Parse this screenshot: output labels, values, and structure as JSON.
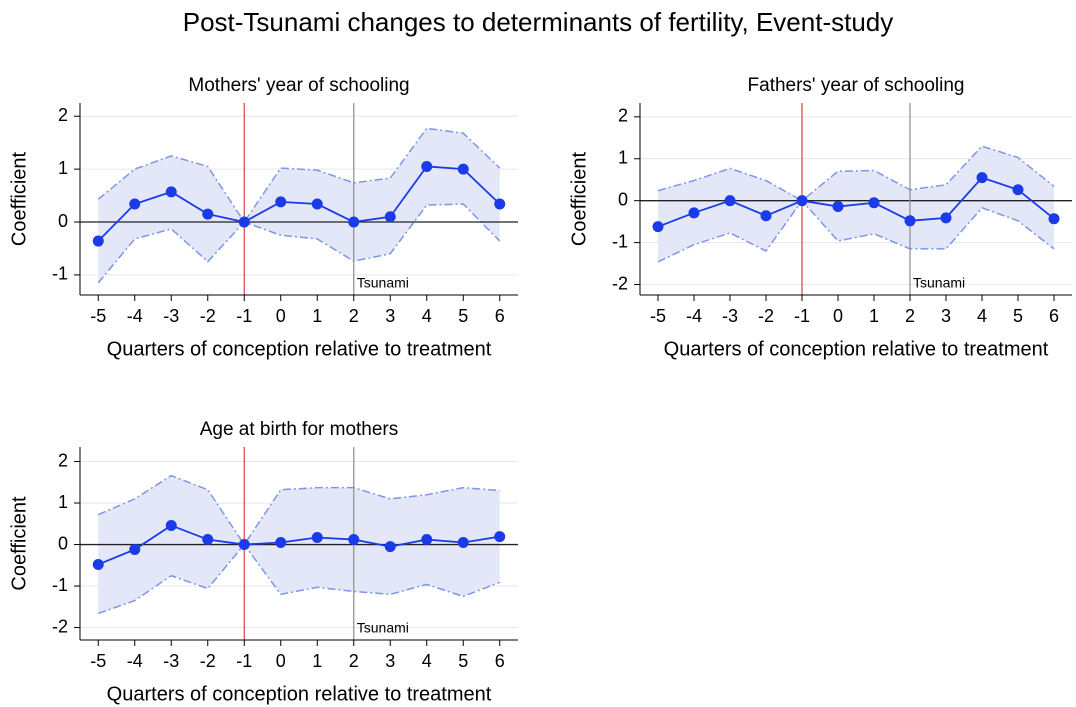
{
  "title": "Post-Tsunami changes to determinants of fertility, Event-study",
  "chart_data": [
    {
      "type": "line",
      "title": "Mothers' year of schooling",
      "x_label": "Quarters of conception relative to treatment",
      "y_label": "Coefficient",
      "x": [
        -5,
        -4,
        -3,
        -2,
        -1,
        0,
        1,
        2,
        3,
        4,
        5,
        6
      ],
      "values": [
        -0.36,
        0.34,
        0.57,
        0.15,
        0,
        0.38,
        0.34,
        0,
        0.1,
        1.05,
        1.0,
        0.34
      ],
      "ci_upper": [
        0.43,
        1.0,
        1.25,
        1.05,
        0,
        1.02,
        0.98,
        0.74,
        0.83,
        1.77,
        1.68,
        1.02
      ],
      "ci_lower": [
        -1.15,
        -0.32,
        -0.13,
        -0.75,
        0,
        -0.25,
        -0.32,
        -0.74,
        -0.6,
        0.32,
        0.34,
        -0.36
      ],
      "color": "#1a3be8",
      "ci_color": "#7f96e8",
      "ci_fill": "#e4e7f8",
      "xlim": [
        -5.5,
        6.5
      ],
      "xticks": [
        -5,
        -4,
        -3,
        -2,
        -1,
        0,
        1,
        2,
        3,
        4,
        5,
        6
      ],
      "ylim": [
        -1.38,
        2.25
      ],
      "yticks": [
        -1,
        0,
        1,
        2
      ],
      "grid": true,
      "refline_y": 0,
      "vlines": [
        {
          "x": -1,
          "color": "#e0403a"
        },
        {
          "x": 2,
          "color": "#8c8c8c"
        }
      ],
      "annotations": [
        {
          "text": "Tsunami",
          "x": 2
        }
      ]
    },
    {
      "type": "line",
      "title": "Fathers' year of schooling",
      "x_label": "Quarters of conception relative to treatment",
      "y_label": "Coefficient",
      "x": [
        -5,
        -4,
        -3,
        -2,
        -1,
        0,
        1,
        2,
        3,
        4,
        5,
        6
      ],
      "values": [
        -0.62,
        -0.29,
        0,
        -0.36,
        0,
        -0.14,
        -0.05,
        -0.48,
        -0.41,
        0.55,
        0.26,
        -0.43
      ],
      "ci_upper": [
        0.24,
        0.48,
        0.77,
        0.48,
        0,
        0.7,
        0.72,
        0.26,
        0.38,
        1.3,
        1.03,
        0.34
      ],
      "ci_lower": [
        -1.46,
        -1.05,
        -0.77,
        -1.2,
        0,
        -0.96,
        -0.79,
        -1.15,
        -1.15,
        -0.17,
        -0.48,
        -1.15
      ],
      "color": "#1a3be8",
      "ci_color": "#7f96e8",
      "ci_fill": "#e4e7f8",
      "xlim": [
        -5.5,
        6.5
      ],
      "xticks": [
        -5,
        -4,
        -3,
        -2,
        -1,
        0,
        1,
        2,
        3,
        4,
        5,
        6
      ],
      "ylim": [
        -2.25,
        2.33
      ],
      "yticks": [
        -2,
        -1,
        0,
        1,
        2
      ],
      "grid": true,
      "refline_y": 0,
      "vlines": [
        {
          "x": -1,
          "color": "#e0403a"
        },
        {
          "x": 2,
          "color": "#8c8c8c"
        }
      ],
      "annotations": [
        {
          "text": "Tsunami",
          "x": 2
        }
      ]
    },
    {
      "type": "line",
      "title": "Age at birth for mothers",
      "x_label": "Quarters of conception relative to treatment",
      "y_label": "Coefficient",
      "x": [
        -5,
        -4,
        -3,
        -2,
        -1,
        0,
        1,
        2,
        3,
        4,
        5,
        6
      ],
      "values": [
        -0.48,
        -0.12,
        0.46,
        0.12,
        0,
        0.05,
        0.17,
        0.12,
        -0.05,
        0.12,
        0.05,
        0.19
      ],
      "ci_upper": [
        0.72,
        1.1,
        1.66,
        1.32,
        0,
        1.32,
        1.37,
        1.37,
        1.1,
        1.2,
        1.37,
        1.3
      ],
      "ci_lower": [
        -1.66,
        -1.35,
        -0.75,
        -1.06,
        0,
        -1.2,
        -1.03,
        -1.13,
        -1.2,
        -0.96,
        -1.25,
        -0.91
      ],
      "color": "#1a3be8",
      "ci_color": "#7f96e8",
      "ci_fill": "#e4e7f8",
      "xlim": [
        -5.5,
        6.5
      ],
      "xticks": [
        -5,
        -4,
        -3,
        -2,
        -1,
        0,
        1,
        2,
        3,
        4,
        5,
        6
      ],
      "ylim": [
        -2.3,
        2.35
      ],
      "yticks": [
        -2,
        -1,
        0,
        1,
        2
      ],
      "grid": true,
      "refline_y": 0,
      "vlines": [
        {
          "x": -1,
          "color": "#e0403a"
        },
        {
          "x": 2,
          "color": "#8c8c8c"
        }
      ],
      "annotations": [
        {
          "text": "Tsunami",
          "x": 2
        }
      ]
    }
  ]
}
